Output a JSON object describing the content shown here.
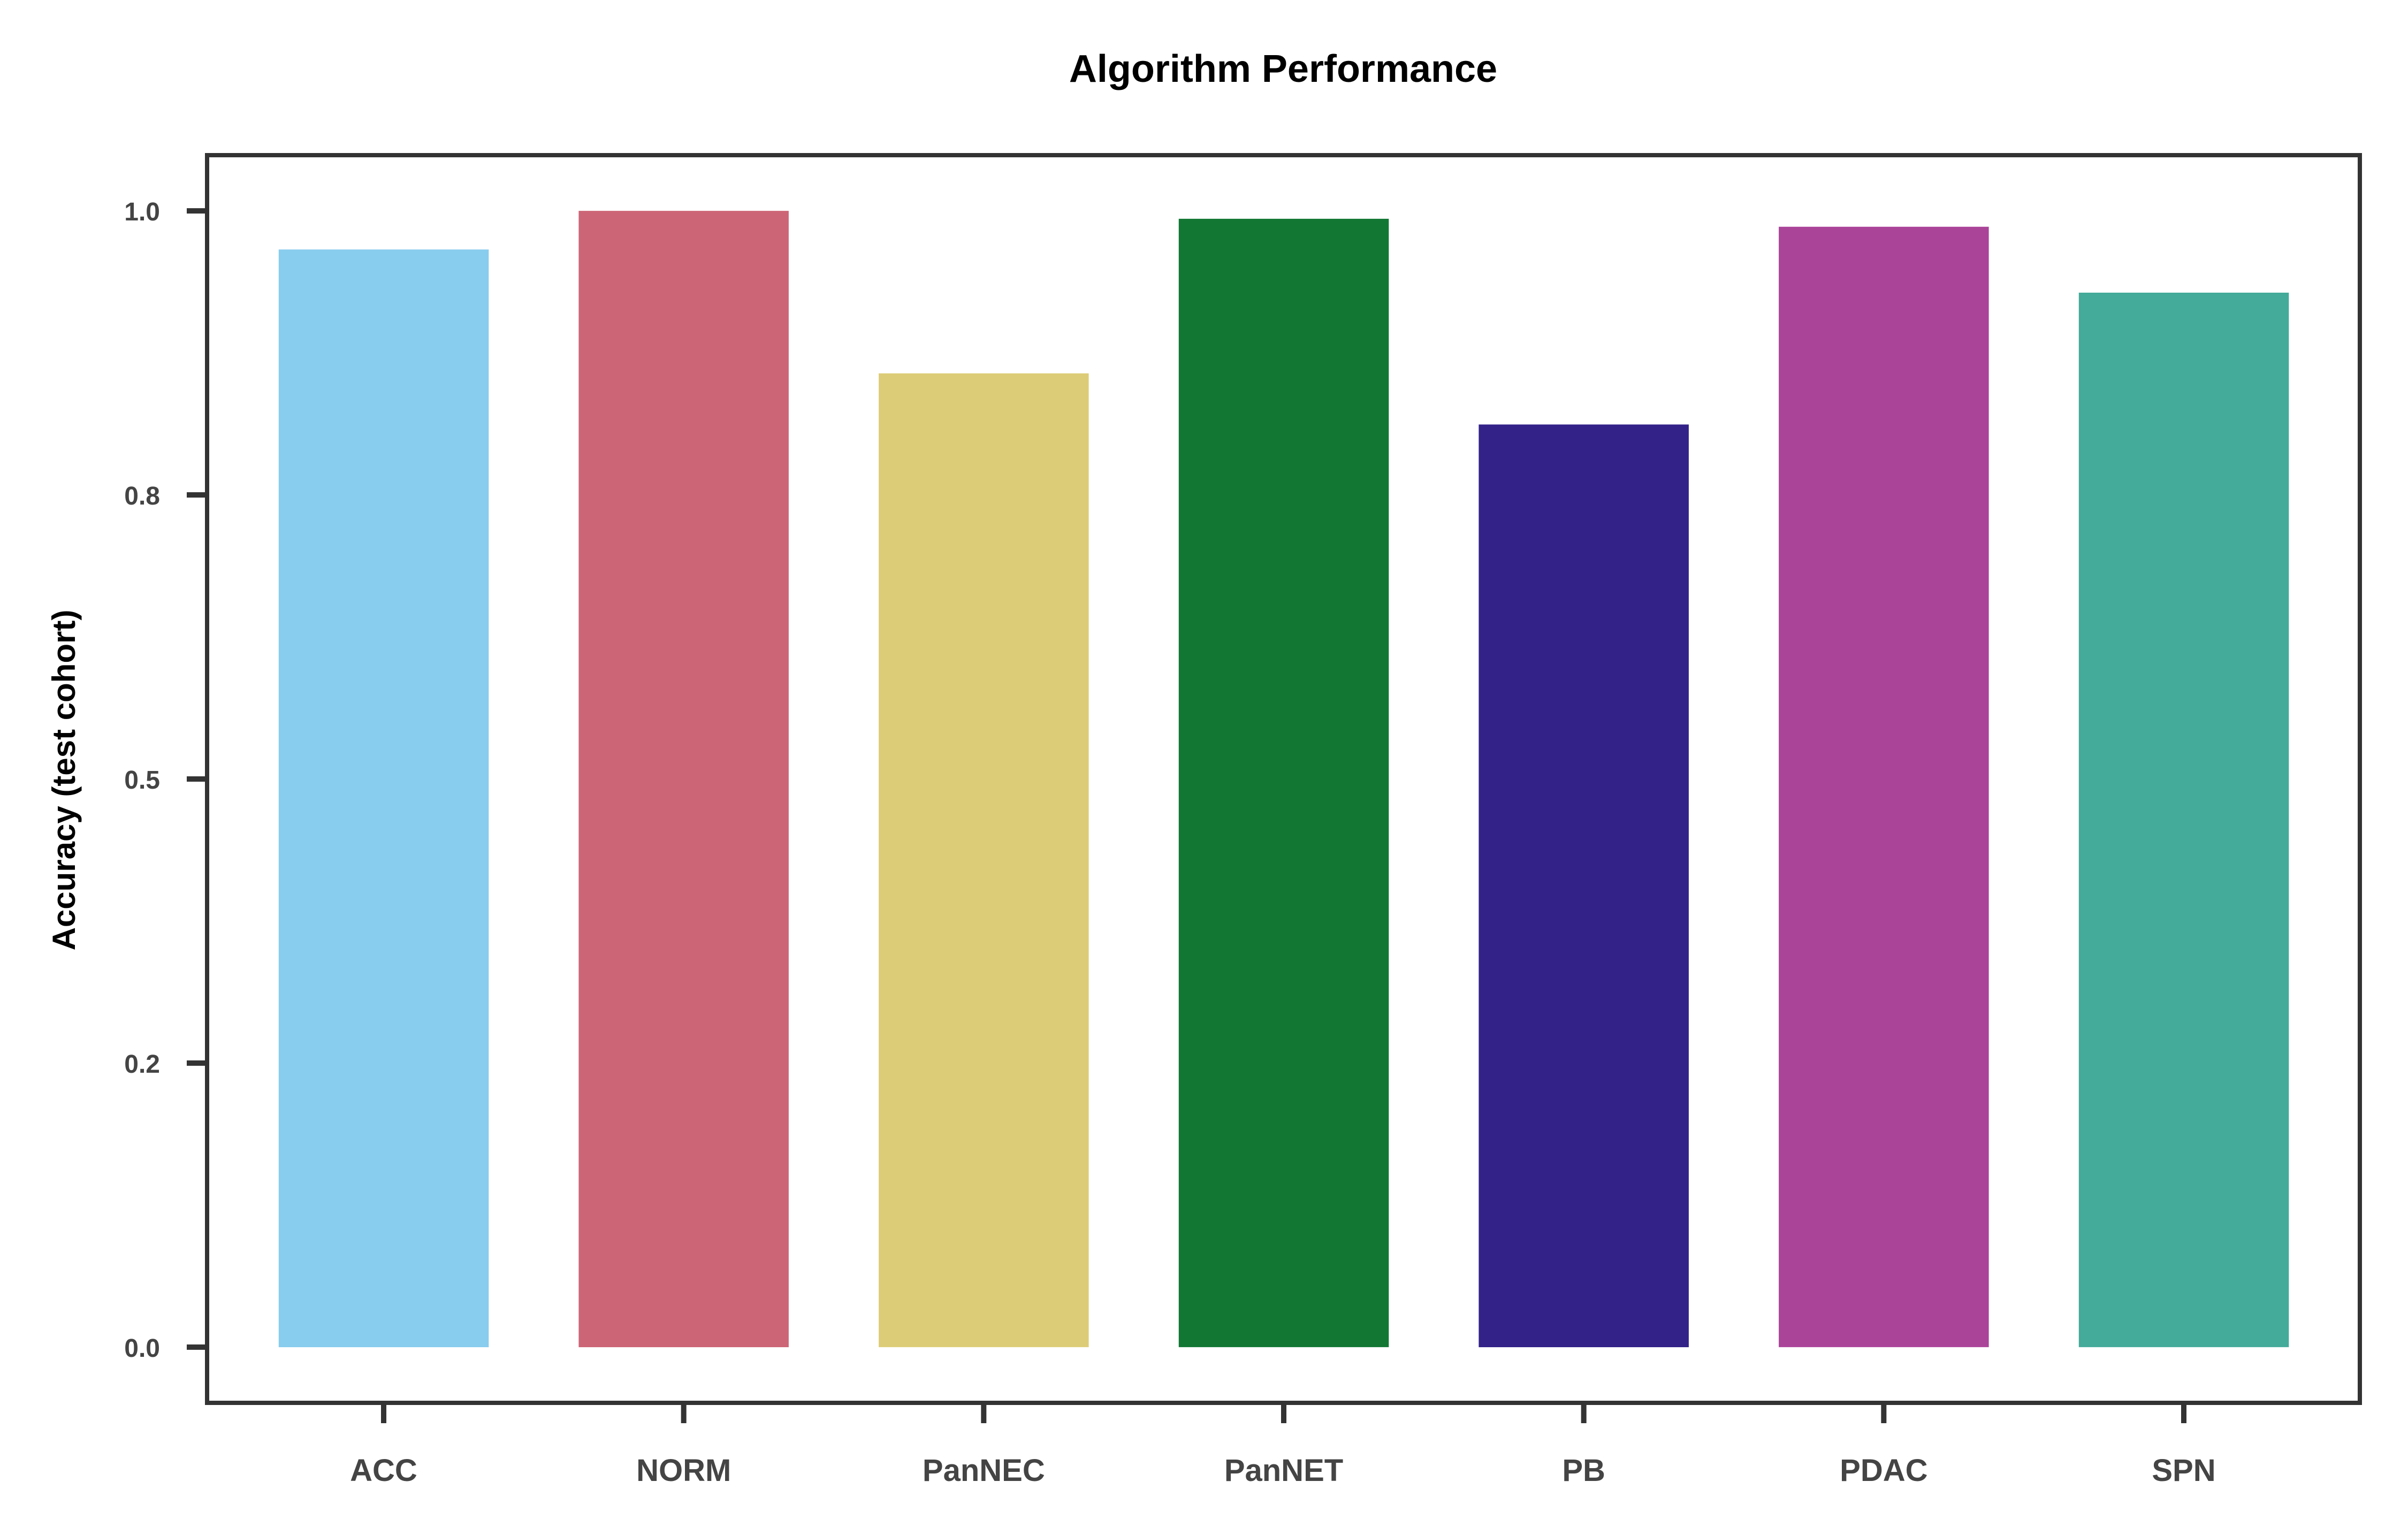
{
  "chart_data": {
    "type": "bar",
    "title": "Algorithm Performance",
    "xlabel": "",
    "ylabel": "Accuracy (test cohort)",
    "categories": [
      "ACC",
      "NORM",
      "PanNEC",
      "PanNET",
      "PB",
      "PDAC",
      "SPN"
    ],
    "values": [
      0.966,
      1.0,
      0.857,
      0.993,
      0.812,
      0.986,
      0.928
    ],
    "colors": [
      "#88CCEE",
      "#CC6677",
      "#DDCC77",
      "#117733",
      "#332288",
      "#AA4499",
      "#44AA99"
    ],
    "ylim": [
      -0.049,
      1.049
    ],
    "yticks": [
      0.0,
      0.25,
      0.5,
      0.75,
      1.0
    ],
    "ytick_labels": [
      "0.0",
      "0.2",
      "0.5",
      "0.8",
      "1.0"
    ],
    "grid": false,
    "legend": "none",
    "frame_color": "#333333",
    "tick_label_color": "#444444"
  }
}
